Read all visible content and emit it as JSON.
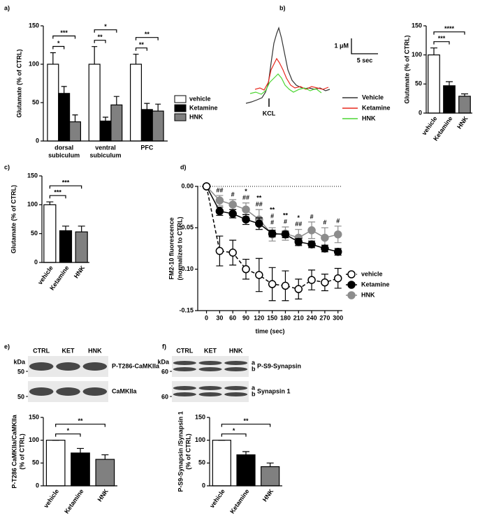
{
  "chart_data": [
    {
      "type": "bar",
      "label": "a)",
      "ylabel": "Glutamate (% of CTRL)",
      "categories": [
        [
          "dorsal",
          "subiculum"
        ],
        [
          "ventral",
          "subiculum"
        ],
        [
          "PFC"
        ]
      ],
      "series": [
        {
          "name": "vehicle",
          "color": "#ffffff",
          "values": [
            100,
            100,
            100
          ],
          "errors": [
            15,
            23,
            13
          ]
        },
        {
          "name": "Ketamine",
          "color": "#000000",
          "values": [
            62,
            26,
            41
          ],
          "errors": [
            9,
            5,
            8
          ]
        },
        {
          "name": "HNK",
          "color": "#808080",
          "values": [
            25,
            47,
            39
          ],
          "errors": [
            9,
            11,
            9
          ]
        }
      ],
      "ylim": [
        0,
        150
      ],
      "yticks": [
        0,
        50,
        100,
        150
      ],
      "annotations": [
        {
          "text": "*",
          "group": 0,
          "from": 0,
          "to": 1
        },
        {
          "text": "***",
          "group": 0,
          "from": 0,
          "to": 2
        },
        {
          "text": "**",
          "group": 1,
          "from": 0,
          "to": 1
        },
        {
          "text": "*",
          "group": 1,
          "from": 0,
          "to": 2
        },
        {
          "text": "**",
          "group": 2,
          "from": 0,
          "to": 1
        },
        {
          "text": "**",
          "group": 2,
          "from": 0,
          "to": 2
        }
      ]
    },
    {
      "type": "bar",
      "label": "b)",
      "ylabel": "Glutamate (% of CTRL)",
      "categories": [
        "vehicle",
        "Ketamine",
        "HNK"
      ],
      "values": [
        100,
        47,
        29
      ],
      "errors": [
        12,
        7,
        4
      ],
      "colors": [
        "#ffffff",
        "#000000",
        "#808080"
      ],
      "ylim": [
        0,
        150
      ],
      "yticks": [
        0,
        50,
        100,
        150
      ],
      "annotations": [
        {
          "text": "***",
          "from": 0,
          "to": 1
        },
        {
          "text": "****",
          "from": 0,
          "to": 2
        }
      ],
      "trace": {
        "scale_y": "1 μM",
        "scale_x": "5 sec",
        "stimulus": "KCL",
        "legend": [
          {
            "name": "Vehicle",
            "color": "#333333"
          },
          {
            "name": "Ketamine",
            "color": "#e8281e"
          },
          {
            "name": "HNK",
            "color": "#4cd632"
          }
        ]
      }
    },
    {
      "type": "bar",
      "label": "c)",
      "ylabel": "Glutamate (% of CTRL)",
      "categories": [
        "vehicle",
        "Ketamine",
        "HNK"
      ],
      "values": [
        100,
        55,
        53
      ],
      "errors": [
        5,
        8,
        10
      ],
      "colors": [
        "#ffffff",
        "#000000",
        "#808080"
      ],
      "ylim": [
        0,
        150
      ],
      "yticks": [
        0,
        50,
        100,
        150
      ],
      "annotations": [
        {
          "text": "***",
          "from": 0,
          "to": 1
        },
        {
          "text": "***",
          "from": 0,
          "to": 2
        }
      ]
    },
    {
      "type": "line",
      "label": "d)",
      "xlabel": "time (sec)",
      "ylabel": [
        "FM2-10 fluorescence",
        "(normalized to CTRL)"
      ],
      "x": [
        0,
        30,
        60,
        90,
        120,
        150,
        180,
        210,
        240,
        270,
        300
      ],
      "xlim": [
        -20,
        310
      ],
      "xticks": [
        0,
        30,
        60,
        90,
        120,
        150,
        180,
        210,
        240,
        270,
        300
      ],
      "ylim": [
        -0.15,
        0
      ],
      "yticks": [
        {
          "value": 0,
          "label": "0.00"
        },
        {
          "value": -0.05,
          "label": "-0.05"
        },
        {
          "value": -0.1,
          "label": "-0.10"
        },
        {
          "value": -0.15,
          "label": "-0.15"
        }
      ],
      "zero_line": true,
      "series": [
        {
          "name": "vehicle",
          "color": "#000000",
          "dashed": true,
          "open_marker": true,
          "values": [
            0,
            -0.078,
            -0.08,
            -0.1,
            -0.107,
            -0.118,
            -0.12,
            -0.124,
            -0.113,
            -0.116,
            -0.111
          ],
          "errors": [
            0,
            0.018,
            0.015,
            0.012,
            0.02,
            0.02,
            0.018,
            0.012,
            0.012,
            0.01,
            0.012
          ]
        },
        {
          "name": "Ketamine",
          "color": "#000000",
          "values": [
            0,
            -0.03,
            -0.033,
            -0.04,
            -0.045,
            -0.057,
            -0.058,
            -0.067,
            -0.07,
            -0.075,
            -0.079
          ],
          "errors": [
            0,
            0.005,
            0.005,
            0.006,
            0.007,
            0.004,
            0.004,
            0.004,
            0.004,
            0.004,
            0.004
          ]
        },
        {
          "name": "HNK",
          "color": "#8c8c8c",
          "values": [
            0,
            -0.017,
            -0.022,
            -0.028,
            -0.04,
            -0.058,
            -0.057,
            -0.062,
            -0.053,
            -0.062,
            -0.058
          ],
          "errors": [
            0,
            0.006,
            0.006,
            0.008,
            0.012,
            0.008,
            0.008,
            0.01,
            0.01,
            0.012,
            0.01
          ]
        }
      ],
      "annotations": [
        {
          "x": 30,
          "hash": [
            "##"
          ]
        },
        {
          "x": 60,
          "hash": [
            "#"
          ]
        },
        {
          "x": 90,
          "stars": "*",
          "hash": [
            "##"
          ]
        },
        {
          "x": 120,
          "stars": "**",
          "hash": [
            "##"
          ]
        },
        {
          "x": 150,
          "stars": "**",
          "hash": [
            "#",
            "#"
          ]
        },
        {
          "x": 180,
          "stars": "**",
          "hash": [
            "#"
          ]
        },
        {
          "x": 210,
          "stars": "*",
          "hash": [
            "##"
          ]
        },
        {
          "x": 240,
          "hash": [
            "#"
          ]
        },
        {
          "x": 270,
          "hash": [
            "#"
          ]
        },
        {
          "x": 300,
          "hash": [
            "#"
          ]
        }
      ]
    },
    {
      "type": "bar",
      "label": "e)",
      "ylabel": [
        "P-T286 CaMKIIa/CaMKIIa",
        "(% of CTRL)"
      ],
      "categories": [
        "vehicle",
        "Ketamine",
        "HNK"
      ],
      "values": [
        100,
        72,
        58
      ],
      "errors": [
        0,
        10,
        10
      ],
      "colors": [
        "#ffffff",
        "#000000",
        "#808080"
      ],
      "ylim": [
        0,
        150
      ],
      "yticks": [
        0,
        50,
        100,
        150
      ],
      "annotations": [
        {
          "text": "*",
          "from": 0,
          "to": 1
        },
        {
          "text": "**",
          "from": 0,
          "to": 2
        }
      ],
      "blot": {
        "unit": "kDa",
        "lanes": [
          "CTRL",
          "KET",
          "HNK"
        ],
        "rows": [
          {
            "marker": "50",
            "label": "P-T286-CaMKIIa"
          },
          {
            "marker": "50",
            "label": "CaMKIIa"
          }
        ]
      }
    },
    {
      "type": "bar",
      "label": "f)",
      "ylabel": [
        "P-S9-Synapsin /Synapsin 1",
        "(% of CTRL)"
      ],
      "categories": [
        "vehicle",
        "Ketamine",
        "HNK"
      ],
      "values": [
        100,
        68,
        42
      ],
      "errors": [
        0,
        7,
        8
      ],
      "colors": [
        "#ffffff",
        "#000000",
        "#808080"
      ],
      "ylim": [
        0,
        150
      ],
      "yticks": [
        0,
        50,
        100,
        150
      ],
      "annotations": [
        {
          "text": "*",
          "from": 0,
          "to": 1
        },
        {
          "text": "**",
          "from": 0,
          "to": 2
        }
      ],
      "blot": {
        "unit": "kDa",
        "lanes": [
          "CTRL",
          "KET",
          "HNK"
        ],
        "rows": [
          {
            "marker": "60",
            "label": "P-S9-Synapsin",
            "bands": [
              "a",
              "b"
            ]
          },
          {
            "marker": "60",
            "label": "Synapsin 1",
            "bands": [
              "a",
              "b"
            ]
          }
        ]
      }
    }
  ]
}
